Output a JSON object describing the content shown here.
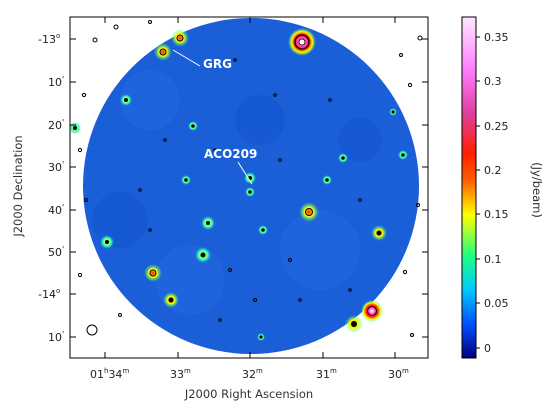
{
  "figure": {
    "annotations": [
      "GRG",
      "ACO209"
    ],
    "x_axis": {
      "title": "J2000 Right Ascension",
      "ticks": [
        {
          "h": "01",
          "m": "34"
        },
        {
          "h": "",
          "m": "33"
        },
        {
          "h": "",
          "m": "32"
        },
        {
          "h": "",
          "m": "31"
        },
        {
          "h": "",
          "m": "30"
        }
      ]
    },
    "y_axis": {
      "title": "J2000 Declination",
      "ticks": [
        {
          "deg": "-13",
          "min": ""
        },
        {
          "deg": "",
          "min": "10"
        },
        {
          "deg": "",
          "min": "20"
        },
        {
          "deg": "",
          "min": "30"
        },
        {
          "deg": "",
          "min": "40"
        },
        {
          "deg": "",
          "min": "50"
        },
        {
          "deg": "-14",
          "min": ""
        },
        {
          "deg": "",
          "min": "10"
        }
      ]
    },
    "colorbar": {
      "label": "(Jy/beam)",
      "ticks": [
        "0.35",
        "0.3",
        "0.25",
        "0.2",
        "0.15",
        "0.1",
        "0.05",
        "0"
      ],
      "colors": [
        "#000080",
        "#0050ff",
        "#00c8ff",
        "#20ff80",
        "#ffff00",
        "#ffa000",
        "#ff2000",
        "#e040a0",
        "#ff80ff",
        "#ffffff"
      ]
    },
    "colors": {
      "background_map": "#1a5fd8",
      "contour": "#000000",
      "frame": "#000000"
    }
  }
}
